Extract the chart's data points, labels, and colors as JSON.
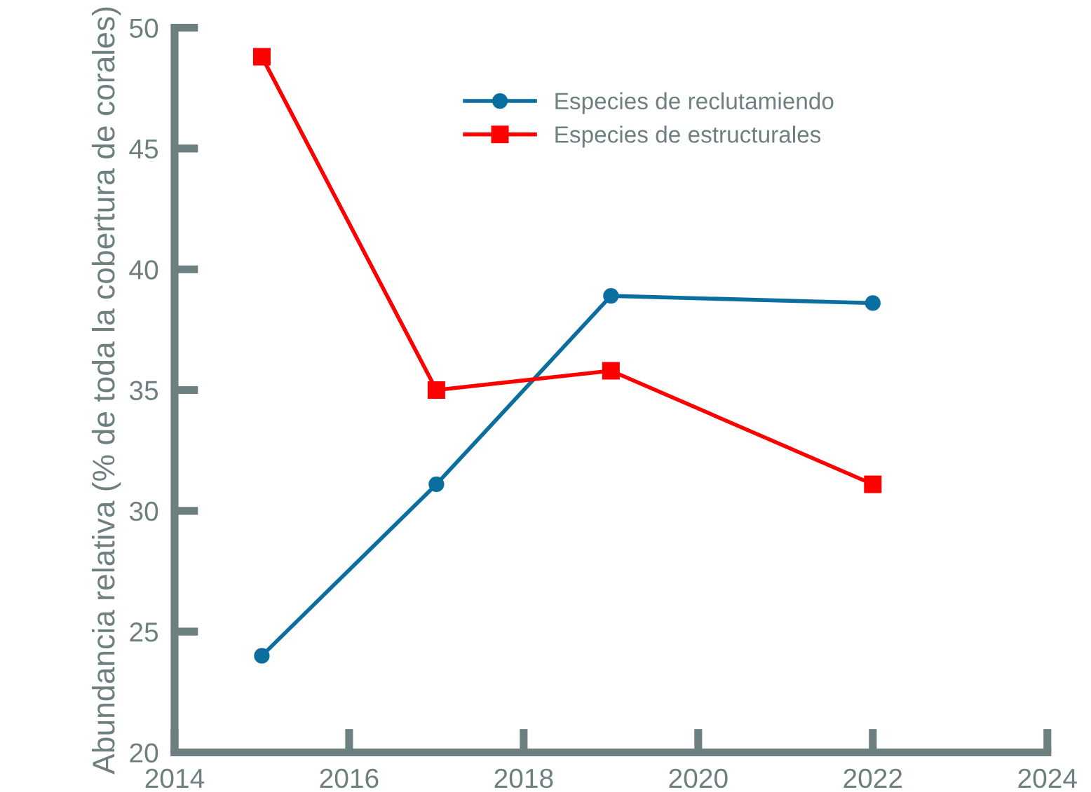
{
  "chart_data": {
    "type": "line",
    "ylabel": "Abundancia relativa (% de toda la cobertura de corales)",
    "x": [
      2015,
      2017,
      2019,
      2022
    ],
    "series": [
      {
        "name": "Especies de reclutamiendo",
        "color": "#0a6e9e",
        "values": [
          24.0,
          31.1,
          38.9,
          38.6
        ],
        "marker": "circle"
      },
      {
        "name": "Especies de estructurales",
        "color": "#ff0000",
        "values": [
          48.8,
          35.0,
          35.8,
          31.1
        ],
        "marker": "square"
      }
    ],
    "xlim": [
      2014,
      2024
    ],
    "xticks": [
      2014,
      2016,
      2018,
      2020,
      2022,
      2024
    ],
    "ylim": [
      20,
      50
    ],
    "yticks": [
      20,
      25,
      30,
      35,
      40,
      45,
      50
    ],
    "grid": false,
    "legend": "top right",
    "line_style": "solid"
  }
}
